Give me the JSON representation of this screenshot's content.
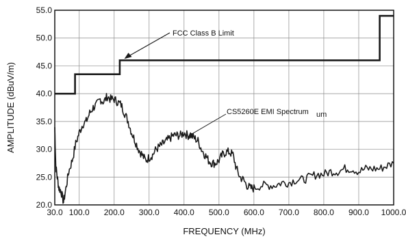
{
  "chart_data": {
    "type": "line",
    "title": "",
    "xlabel": "FREQUENCY (MHz)",
    "ylabel": "AMPLITUDE (dBuV/m)",
    "xlim": [
      30,
      1000
    ],
    "ylim": [
      20,
      55
    ],
    "x_ticks": [
      30,
      100,
      200,
      300,
      400,
      500,
      600,
      700,
      800,
      900,
      1000
    ],
    "x_tick_labels": [
      "30.0",
      "100.0",
      "200.0",
      "300.0",
      "400.0",
      "500.0",
      "600.0",
      "700.0",
      "800.0",
      "900.0",
      "1000.0"
    ],
    "y_ticks": [
      20,
      25,
      30,
      35,
      40,
      45,
      50,
      55
    ],
    "y_tick_labels": [
      "20.0",
      "25.0",
      "30.0",
      "35.0",
      "40.0",
      "45.0",
      "50.0",
      "55.0"
    ],
    "grid": true,
    "series": [
      {
        "name": "FCC Class B Limit",
        "step": true,
        "x": [
          30,
          88,
          216,
          960,
          1000
        ],
        "y": [
          40.0,
          43.5,
          46.0,
          54.0,
          54.0
        ]
      },
      {
        "name": "CS5260E EMI Spectrum",
        "x": [
          30,
          33,
          37,
          42,
          48,
          55,
          62,
          70,
          80,
          90,
          100,
          110,
          120,
          130,
          140,
          150,
          160,
          170,
          180,
          190,
          200,
          210,
          220,
          230,
          240,
          250,
          260,
          270,
          280,
          290,
          300,
          310,
          320,
          330,
          340,
          350,
          360,
          370,
          380,
          390,
          400,
          410,
          420,
          430,
          440,
          450,
          460,
          470,
          480,
          490,
          500,
          510,
          520,
          530,
          540,
          550,
          560,
          570,
          580,
          590,
          600,
          620,
          640,
          660,
          680,
          700,
          720,
          740,
          760,
          780,
          800,
          820,
          840,
          860,
          880,
          900,
          920,
          940,
          960,
          980,
          1000
        ],
        "y": [
          34,
          27,
          25,
          23,
          22.5,
          20.5,
          23,
          26,
          28,
          31,
          33,
          34.5,
          35,
          36.5,
          37.5,
          38,
          39,
          38.5,
          39.5,
          39,
          39,
          38.5,
          38,
          36.5,
          35,
          33,
          31.5,
          30,
          29,
          28,
          28.5,
          29,
          30,
          30.5,
          31,
          31.5,
          32,
          32.5,
          32.5,
          32.5,
          33,
          32.5,
          32.5,
          32,
          31.5,
          30,
          29,
          28,
          27.5,
          27.5,
          28,
          29,
          29.5,
          29.5,
          29,
          26.5,
          25,
          24.5,
          23.5,
          23,
          23,
          23.5,
          23.5,
          23.5,
          24,
          24,
          24.5,
          24.5,
          25,
          25.5,
          25.5,
          26,
          26,
          26.5,
          26.5,
          26,
          26.5,
          26.5,
          26.5,
          27,
          27.5
        ]
      }
    ],
    "annotations": [
      {
        "text": "FCC Class B Limit",
        "target_x": 225,
        "target_y": 46
      },
      {
        "text": "CS5260E EMI Spectrum",
        "target_x": 410,
        "target_y": 31.5
      },
      {
        "text": "um"
      }
    ],
    "colors": {
      "line": "#1a1a1a",
      "grid": "#8a8a8a",
      "frame": "#111111"
    }
  }
}
